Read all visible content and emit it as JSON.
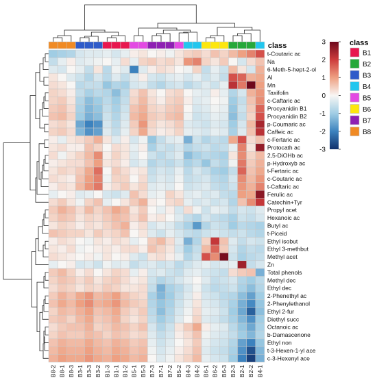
{
  "chart_data": {
    "type": "heatmap",
    "class_bar_label": "class",
    "columns": [
      "B8-2",
      "B8-1",
      "B8-3",
      "B3-1",
      "B3-3",
      "B3-2",
      "B1-3",
      "B1-1",
      "B1-2",
      "B5-1",
      "B5-3",
      "B7-3",
      "B7-1",
      "B7-2",
      "B5-2",
      "B4-3",
      "B4-2",
      "B6-1",
      "B6-2",
      "B6-3",
      "B2-3",
      "B2-1",
      "B2-2",
      "B4-1"
    ],
    "column_classes": [
      "B8",
      "B8",
      "B8",
      "B3",
      "B3",
      "B3",
      "B1",
      "B1",
      "B1",
      "B5",
      "B5",
      "B7",
      "B7",
      "B7",
      "B5",
      "B4",
      "B4",
      "B6",
      "B6",
      "B6",
      "B2",
      "B2",
      "B2",
      "B4"
    ],
    "rows": [
      "t-Coutaric ac",
      "Na",
      "6-Meth-5-hept-2-ol",
      "Al",
      "Mn",
      "Taxifolin",
      "c-Caftaric ac",
      "Procyanidin B1",
      "Procyanidin B2",
      "p-Coumaric ac",
      "Caffeic ac",
      "c-Fertaric ac",
      "Protocath ac",
      "2,5-DiOHb ac",
      "p-Hydroxyb ac",
      "t-Fertaric ac",
      "c-Coutaric ac",
      "t-Caftaric ac",
      "Ferulic ac",
      "Catechin+Tyr",
      "Propyl acet",
      "Hexanoic ac",
      "Butyl ac",
      "t-Piceid",
      "Ethyl isobut",
      "Ethyl 3-methbut",
      "Methyl acet",
      "Zn",
      "Total phenols",
      "Methyl dec",
      "Ethyl dec",
      "2-Phenethyl ac",
      "2-Phenylethanol",
      "Ethyl 2-fur",
      "Diethyl succ",
      "Octanoic ac",
      "b-Damascenone",
      "Ethyl non",
      "t-3-Hexen-1-yl ace",
      "c-3-Hexenyl ace"
    ],
    "values": [
      [
        -1.0,
        -0.9,
        -0.8,
        -0.4,
        -0.3,
        -0.3,
        -0.2,
        -0.4,
        -0.2,
        0.1,
        0.2,
        0.0,
        0.1,
        -0.1,
        0.2,
        0.4,
        0.5,
        0.3,
        0.6,
        0.4,
        0.7,
        1.0,
        1.3,
        1.8
      ],
      [
        -0.6,
        -0.2,
        0.1,
        -0.3,
        -0.2,
        -0.1,
        0.0,
        -0.2,
        0.3,
        -0.2,
        0.4,
        0.5,
        0.3,
        0.4,
        0.2,
        1.1,
        1.3,
        0.4,
        0.2,
        0.5,
        0.0,
        -0.4,
        0.3,
        0.6
      ],
      [
        -0.3,
        -0.4,
        0.0,
        -0.2,
        -0.6,
        0.2,
        -0.7,
        -0.1,
        -0.3,
        -2.0,
        -0.3,
        0.1,
        0.3,
        0.2,
        0.0,
        -0.1,
        0.4,
        -0.6,
        -0.2,
        -0.5,
        0.7,
        0.2,
        -0.4,
        0.8
      ],
      [
        0.2,
        0.0,
        -0.3,
        -0.5,
        -0.8,
        -0.4,
        -0.7,
        -0.3,
        -0.6,
        -0.3,
        0.1,
        -0.4,
        -0.5,
        -0.3,
        -0.2,
        -0.4,
        -0.2,
        -0.5,
        -0.3,
        -0.6,
        1.8,
        1.6,
        0.8,
        0.9
      ],
      [
        0.3,
        0.2,
        0.0,
        -0.7,
        -0.6,
        -0.6,
        -1.1,
        -0.8,
        -0.9,
        -0.4,
        -0.3,
        -0.6,
        -0.8,
        -0.5,
        -0.4,
        -0.7,
        -0.5,
        -0.3,
        -0.5,
        -0.2,
        2.2,
        1.4,
        3.1,
        1.0
      ],
      [
        0.4,
        0.3,
        0.1,
        -0.6,
        -0.9,
        -0.7,
        -0.8,
        -1.2,
        -0.7,
        0.3,
        0.6,
        0.2,
        0.0,
        0.3,
        0.4,
        0.0,
        -0.2,
        -0.3,
        0.1,
        -0.2,
        -0.8,
        -0.4,
        0.8,
        1.1
      ],
      [
        0.4,
        0.5,
        0.2,
        -0.8,
        -1.2,
        -1.0,
        -0.7,
        -1.0,
        -0.6,
        0.4,
        0.7,
        0.3,
        0.1,
        0.4,
        0.5,
        0.1,
        -0.3,
        -0.2,
        0.0,
        -0.1,
        -1.0,
        -0.6,
        0.6,
        1.2
      ],
      [
        0.5,
        0.6,
        0.3,
        -0.9,
        -1.3,
        -1.1,
        -0.6,
        -0.9,
        -0.5,
        0.6,
        0.8,
        0.4,
        0.3,
        0.5,
        0.6,
        0.0,
        -0.4,
        -0.3,
        -0.1,
        -0.2,
        -1.1,
        -0.5,
        0.5,
        1.6
      ],
      [
        0.6,
        0.7,
        0.4,
        -1.0,
        -1.4,
        -1.2,
        -0.5,
        -0.8,
        -0.4,
        0.7,
        0.9,
        0.5,
        0.4,
        0.6,
        0.7,
        -0.1,
        -0.5,
        -0.4,
        -0.2,
        -0.3,
        -1.2,
        -0.6,
        0.4,
        1.8
      ],
      [
        0.3,
        0.4,
        0.2,
        -1.5,
        -2.0,
        -1.8,
        -0.4,
        -0.7,
        -0.3,
        0.5,
        1.1,
        0.4,
        0.2,
        0.3,
        0.5,
        -0.3,
        -0.4,
        -0.5,
        -0.3,
        -0.4,
        -1.0,
        -0.4,
        0.7,
        2.4
      ],
      [
        0.4,
        0.5,
        0.3,
        -1.3,
        -1.8,
        -1.6,
        -0.3,
        -0.6,
        -0.2,
        0.4,
        0.9,
        0.3,
        0.1,
        0.2,
        0.4,
        -0.2,
        -0.3,
        -0.4,
        -0.2,
        -0.3,
        -0.9,
        -0.3,
        0.6,
        2.2
      ],
      [
        0.1,
        -0.2,
        0.2,
        0.3,
        0.5,
        0.8,
        0.2,
        -0.3,
        0.1,
        -0.4,
        -0.1,
        -1.1,
        -0.6,
        -0.3,
        -0.2,
        -1.4,
        -0.5,
        -0.8,
        -0.6,
        -0.7,
        0.9,
        1.8,
        0.3,
        0.6
      ],
      [
        0.2,
        0.3,
        0.1,
        0.1,
        0.6,
        0.4,
        0.0,
        0.3,
        0.2,
        -0.2,
        0.1,
        -0.9,
        -0.5,
        -0.6,
        -0.4,
        -0.8,
        -0.6,
        -0.5,
        -0.7,
        -0.6,
        -0.2,
        1.3,
        0.2,
        2.6
      ],
      [
        0.3,
        -0.1,
        0.2,
        0.4,
        0.7,
        1.2,
        0.1,
        0.4,
        0.2,
        -0.3,
        0.0,
        -0.5,
        -0.7,
        -0.5,
        -0.3,
        -1.2,
        -0.9,
        -0.7,
        -0.8,
        -0.9,
        0.2,
        1.2,
        0.4,
        0.7
      ],
      [
        0.1,
        0.2,
        0.3,
        0.3,
        0.6,
        1.0,
        0.2,
        0.3,
        0.1,
        -0.4,
        -0.2,
        -0.8,
        -0.6,
        -0.7,
        -0.5,
        -0.9,
        -0.7,
        -1.1,
        -0.6,
        -0.8,
        -0.1,
        1.4,
        0.5,
        0.8
      ],
      [
        0.2,
        0.4,
        0.3,
        0.5,
        0.9,
        1.5,
        0.0,
        0.5,
        0.3,
        0.1,
        0.2,
        -0.6,
        -0.4,
        -0.5,
        -0.2,
        -0.7,
        -0.4,
        -0.6,
        -0.9,
        -1.0,
        -0.6,
        1.6,
        0.6,
        0.9
      ],
      [
        0.3,
        0.2,
        0.1,
        0.6,
        1.0,
        1.3,
        -0.1,
        0.4,
        0.4,
        0.0,
        0.3,
        -0.5,
        -0.3,
        -0.4,
        -0.1,
        -0.6,
        -0.5,
        -0.4,
        -0.7,
        -0.8,
        -0.4,
        1.2,
        0.7,
        1.1
      ],
      [
        0.1,
        0.3,
        0.2,
        0.7,
        1.1,
        1.4,
        0.1,
        0.3,
        0.5,
        0.2,
        0.4,
        -0.3,
        -0.2,
        -0.3,
        0.0,
        -0.5,
        -0.4,
        -0.3,
        -0.6,
        -0.7,
        -0.5,
        1.1,
        0.8,
        1.3
      ],
      [
        -0.2,
        0.0,
        0.1,
        -0.3,
        -0.2,
        0.0,
        -0.4,
        -0.5,
        -0.3,
        0.6,
        0.3,
        -0.2,
        -0.1,
        0.4,
        0.2,
        -0.3,
        -0.2,
        -0.4,
        -0.3,
        -0.6,
        -0.7,
        1.0,
        0.9,
        2.7
      ],
      [
        0.3,
        0.5,
        0.2,
        -0.1,
        0.4,
        0.6,
        -0.2,
        0.0,
        0.2,
        0.5,
        0.8,
        0.1,
        0.0,
        0.3,
        0.4,
        -0.2,
        -0.4,
        -0.3,
        -0.5,
        -0.4,
        -0.8,
        0.6,
        1.2,
        2.1
      ],
      [
        0.5,
        0.8,
        0.6,
        0.3,
        0.7,
        0.4,
        0.6,
        0.9,
        0.7,
        0.2,
        0.5,
        0.0,
        -0.2,
        0.1,
        -0.4,
        0.3,
        -0.1,
        -0.5,
        -0.2,
        -0.3,
        -0.6,
        -0.4,
        -0.5,
        -0.3
      ],
      [
        0.4,
        0.6,
        0.5,
        0.2,
        0.4,
        0.3,
        0.5,
        0.7,
        0.6,
        0.3,
        0.6,
        0.1,
        0.2,
        0.0,
        -0.3,
        -0.6,
        -0.8,
        -0.4,
        -0.6,
        -0.7,
        -0.9,
        -0.5,
        -0.6,
        -0.4
      ],
      [
        0.2,
        0.4,
        0.3,
        0.1,
        0.3,
        0.2,
        0.4,
        0.6,
        0.8,
        0.1,
        0.3,
        -0.4,
        -0.2,
        -0.3,
        -0.6,
        -0.9,
        -1.7,
        -0.8,
        -0.5,
        -0.6,
        -1.0,
        -0.7,
        -0.8,
        -0.9
      ],
      [
        0.6,
        0.5,
        0.4,
        0.4,
        0.2,
        0.5,
        0.3,
        0.4,
        0.6,
        0.0,
        0.2,
        -0.3,
        -0.5,
        -0.2,
        -0.4,
        -0.6,
        -0.7,
        -0.5,
        -0.4,
        -0.5,
        -0.6,
        -0.5,
        -0.7,
        -0.8
      ],
      [
        0.1,
        0.3,
        0.2,
        0.0,
        -0.1,
        0.2,
        0.1,
        0.3,
        0.2,
        -0.2,
        0.0,
        0.5,
        0.7,
        0.3,
        -0.3,
        -1.4,
        -0.8,
        0.4,
        2.1,
        0.6,
        -0.3,
        -0.6,
        -0.4,
        -0.5
      ],
      [
        0.2,
        0.1,
        0.3,
        -0.1,
        0.0,
        0.1,
        0.2,
        0.1,
        0.3,
        0.3,
        0.1,
        0.6,
        0.4,
        0.2,
        -0.4,
        -1.0,
        -0.6,
        0.7,
        1.6,
        0.5,
        -0.4,
        -0.8,
        -0.6,
        -0.7
      ],
      [
        0.3,
        0.2,
        0.1,
        0.0,
        0.1,
        -0.1,
        0.2,
        0.0,
        0.1,
        -0.3,
        -0.5,
        0.2,
        0.3,
        0.1,
        -0.2,
        -0.8,
        -0.5,
        1.8,
        1.2,
        2.9,
        -0.5,
        -0.9,
        -0.7,
        -0.6
      ],
      [
        -0.2,
        0.0,
        0.1,
        -0.4,
        -0.3,
        -0.5,
        -0.1,
        -0.3,
        -0.2,
        -0.6,
        -0.4,
        -0.3,
        -0.5,
        -0.4,
        -0.7,
        -0.5,
        -0.3,
        -0.2,
        -0.4,
        -0.3,
        -0.2,
        2.5,
        -0.6,
        -0.4
      ],
      [
        0.5,
        0.7,
        0.4,
        0.1,
        0.3,
        0.0,
        0.2,
        0.4,
        0.3,
        -0.2,
        0.1,
        -0.4,
        -0.3,
        -0.5,
        -0.6,
        -0.3,
        -0.2,
        -0.4,
        -0.5,
        -0.6,
        0.3,
        0.5,
        0.6,
        -1.4
      ],
      [
        0.4,
        0.6,
        0.5,
        0.3,
        0.5,
        0.2,
        0.4,
        0.5,
        0.3,
        0.1,
        0.2,
        -0.5,
        -0.8,
        -0.6,
        -0.4,
        -0.2,
        0.0,
        -0.3,
        -0.6,
        -0.5,
        -0.4,
        -0.8,
        -1.0,
        -0.7
      ],
      [
        0.3,
        0.5,
        0.4,
        0.2,
        0.4,
        0.3,
        0.5,
        0.4,
        0.2,
        0.2,
        0.3,
        -0.6,
        -1.4,
        -0.9,
        -0.7,
        -0.4,
        -0.1,
        -0.5,
        -0.7,
        -0.6,
        -0.5,
        -0.9,
        -1.2,
        -0.8
      ],
      [
        0.5,
        0.8,
        0.6,
        0.9,
        1.1,
        0.7,
        0.8,
        1.0,
        0.6,
        0.4,
        0.3,
        -0.9,
        -1.3,
        -1.0,
        -0.6,
        -0.3,
        0.1,
        -0.4,
        -0.5,
        -0.7,
        -0.8,
        -1.2,
        -1.6,
        -1.0
      ],
      [
        0.6,
        0.9,
        0.7,
        1.0,
        1.2,
        0.8,
        0.9,
        1.1,
        0.7,
        0.5,
        0.4,
        -0.8,
        -1.1,
        -0.9,
        -0.5,
        -0.2,
        0.2,
        -0.3,
        -0.4,
        -0.6,
        -0.9,
        -1.4,
        -1.9,
        -1.1
      ],
      [
        0.4,
        0.7,
        0.6,
        0.8,
        1.0,
        0.6,
        0.7,
        0.9,
        0.5,
        0.3,
        0.5,
        -0.7,
        -1.2,
        -0.8,
        -0.4,
        -0.1,
        0.3,
        -0.2,
        -0.3,
        -0.5,
        -1.0,
        -1.5,
        -2.4,
        -1.2
      ],
      [
        0.5,
        0.6,
        0.4,
        0.7,
        0.9,
        0.5,
        0.6,
        0.8,
        0.4,
        0.2,
        0.4,
        -0.6,
        -1.0,
        -0.7,
        -0.3,
        0.0,
        0.4,
        -0.3,
        -0.4,
        -0.6,
        -0.9,
        -1.3,
        -1.8,
        -1.0
      ],
      [
        0.3,
        0.5,
        0.6,
        0.6,
        0.8,
        0.4,
        0.5,
        0.7,
        0.6,
        0.4,
        0.6,
        -0.4,
        -0.8,
        -0.5,
        0.2,
        0.5,
        0.9,
        0.1,
        -0.2,
        -0.3,
        -0.7,
        -1.1,
        -1.5,
        -0.9
      ],
      [
        0.4,
        0.6,
        0.5,
        0.5,
        0.7,
        0.6,
        0.4,
        0.6,
        0.5,
        0.3,
        0.4,
        -0.3,
        -0.6,
        -0.4,
        0.1,
        0.3,
        0.6,
        -0.1,
        -0.3,
        -0.4,
        -0.6,
        -1.0,
        -1.3,
        -0.8
      ],
      [
        0.6,
        0.8,
        0.7,
        0.7,
        0.9,
        0.7,
        0.6,
        0.8,
        0.7,
        0.5,
        0.6,
        -0.2,
        -0.5,
        -0.3,
        0.0,
        0.2,
        0.5,
        -0.2,
        -0.4,
        -0.5,
        -0.8,
        -1.6,
        -2.0,
        -1.1
      ],
      [
        0.7,
        0.9,
        0.8,
        0.8,
        1.0,
        0.8,
        0.7,
        0.9,
        0.8,
        0.6,
        0.7,
        -0.1,
        -0.4,
        -0.2,
        0.1,
        0.3,
        0.6,
        -0.3,
        -0.5,
        -0.6,
        -0.9,
        -1.8,
        -2.6,
        -1.3
      ],
      [
        0.8,
        1.0,
        0.9,
        0.9,
        1.1,
        0.9,
        0.8,
        1.0,
        0.9,
        0.7,
        0.8,
        0.0,
        -0.3,
        -0.1,
        0.2,
        0.4,
        0.7,
        -0.2,
        -0.4,
        -0.5,
        -1.0,
        -2.0,
        -2.8,
        -1.4
      ]
    ],
    "colorbar": {
      "min": -3,
      "max": 3,
      "ticks": [
        3,
        2,
        1,
        0,
        -1,
        -2,
        -3
      ]
    },
    "legend": {
      "title": "class",
      "placement": "right",
      "items": [
        {
          "label": "B1",
          "color": "#e8174f"
        },
        {
          "label": "B2",
          "color": "#26a83a"
        },
        {
          "label": "B3",
          "color": "#2f5bc9"
        },
        {
          "label": "B4",
          "color": "#23c6ee"
        },
        {
          "label": "B5",
          "color": "#e34ae3"
        },
        {
          "label": "B6",
          "color": "#fde70f"
        },
        {
          "label": "B7",
          "color": "#8e1fb3"
        },
        {
          "label": "B8",
          "color": "#f08a24"
        }
      ]
    }
  }
}
